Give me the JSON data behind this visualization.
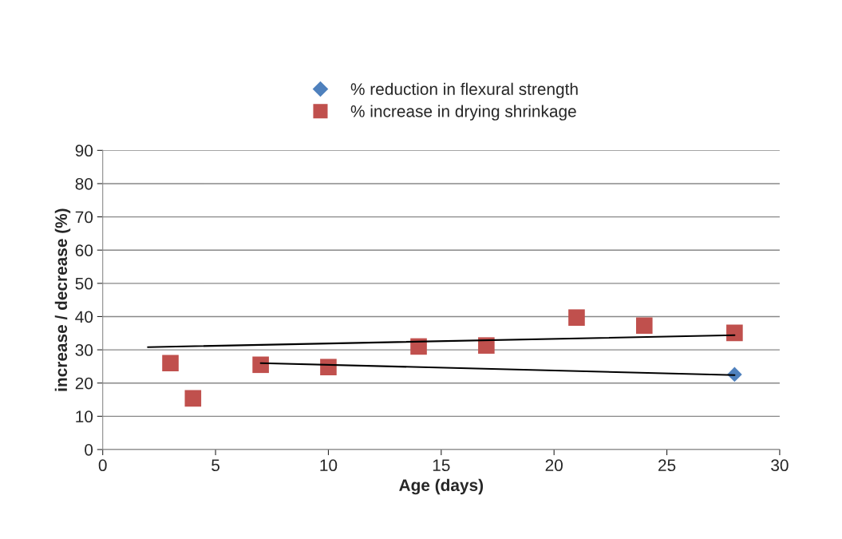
{
  "chart_data": {
    "type": "scatter",
    "xlabel": "Age (days)",
    "ylabel": "increase / decrease (%)",
    "xlim": [
      0,
      30
    ],
    "xticks": [
      0,
      5,
      10,
      15,
      20,
      25,
      30
    ],
    "ylim": [
      0,
      90
    ],
    "yticks": [
      0,
      10,
      20,
      30,
      40,
      50,
      60,
      70,
      80,
      90
    ],
    "grid": "y",
    "legend": "top",
    "series": [
      {
        "name": "% reduction in flexural strength",
        "marker": "diamond",
        "color": "#4f81bd",
        "x": [
          28
        ],
        "values": [
          22.6
        ]
      },
      {
        "name": "% increase in drying shrinkage",
        "marker": "square",
        "color": "#c0504d",
        "x": [
          3,
          4,
          7,
          10,
          14,
          17,
          21,
          24,
          28
        ],
        "values": [
          26.0,
          15.4,
          25.5,
          24.8,
          31.0,
          31.3,
          39.7,
          37.3,
          35.1
        ]
      },
      {
        "type": "line",
        "marker": "none",
        "color": "#000000",
        "x": [
          2,
          28
        ],
        "values": [
          30.8,
          34.4
        ]
      },
      {
        "type": "line",
        "marker": "none",
        "color": "#000000",
        "x": [
          7,
          28
        ],
        "values": [
          26.0,
          22.4
        ]
      }
    ]
  }
}
